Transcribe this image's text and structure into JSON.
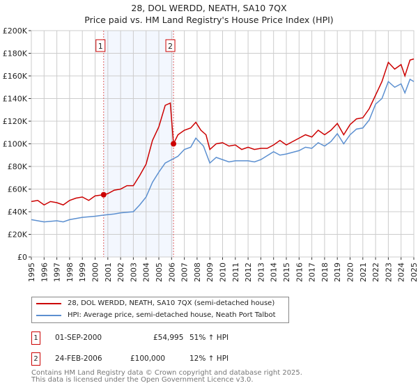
{
  "chart_data": {
    "type": "line",
    "title": "28, DOL WERDD, NEATH, SA10 7QX",
    "subtitle": "Price paid vs. HM Land Registry's House Price Index (HPI)",
    "ylim": [
      0,
      200000
    ],
    "xlim": [
      1995,
      2025
    ],
    "yticks": [
      "£0",
      "£20K",
      "£40K",
      "£60K",
      "£80K",
      "£100K",
      "£120K",
      "£140K",
      "£160K",
      "£180K",
      "£200K"
    ],
    "xticks": [
      "1995",
      "1996",
      "1997",
      "1998",
      "1999",
      "2000",
      "2001",
      "2002",
      "2003",
      "2004",
      "2005",
      "2006",
      "2007",
      "2008",
      "2009",
      "2010",
      "2011",
      "2012",
      "2013",
      "2014",
      "2015",
      "2016",
      "2017",
      "2018",
      "2019",
      "2020",
      "2021",
      "2022",
      "2023",
      "2024",
      "2025"
    ],
    "grid": true,
    "shaded_range": [
      2000.67,
      2006.15
    ],
    "series": [
      {
        "name": "28, DOL WERDD, NEATH, SA10 7QX (semi-detached house)",
        "color": "#cc0000",
        "x": [
          1995,
          1995.5,
          1996,
          1996.5,
          1997,
          1997.5,
          1998,
          1998.5,
          1999,
          1999.5,
          2000,
          2000.67,
          2001,
          2001.5,
          2002,
          2002.5,
          2003,
          2003.5,
          2004,
          2004.5,
          2005,
          2005.5,
          2005.9,
          2006.15,
          2006.5,
          2007,
          2007.5,
          2007.9,
          2008.3,
          2008.7,
          2009,
          2009.5,
          2010,
          2010.5,
          2011,
          2011.5,
          2012,
          2012.5,
          2013,
          2013.5,
          2014,
          2014.5,
          2015,
          2015.5,
          2016,
          2016.5,
          2017,
          2017.5,
          2018,
          2018.5,
          2019,
          2019.5,
          2020,
          2020.5,
          2021,
          2021.5,
          2022,
          2022.5,
          2023,
          2023.5,
          2024,
          2024.3,
          2024.7,
          2025
        ],
        "y": [
          49000,
          50000,
          46000,
          49000,
          48000,
          46000,
          50000,
          52000,
          53000,
          50000,
          54000,
          54995,
          56000,
          59000,
          60000,
          63000,
          63000,
          72000,
          82000,
          103000,
          115000,
          134000,
          136000,
          100000,
          108000,
          112000,
          114000,
          119000,
          112000,
          108000,
          95000,
          100000,
          101000,
          98000,
          99000,
          95000,
          97000,
          95000,
          96000,
          96000,
          99000,
          103000,
          99000,
          102000,
          105000,
          108000,
          106000,
          112000,
          108000,
          112000,
          118000,
          108000,
          117000,
          122000,
          123000,
          131000,
          143000,
          155000,
          172000,
          166000,
          170000,
          160000,
          174000,
          175000
        ]
      },
      {
        "name": "HPI: Average price, semi-detached house, Neath Port Talbot",
        "color": "#5b8fd0",
        "x": [
          1995,
          1996,
          1997,
          1997.5,
          1998,
          1999,
          2000,
          2000.67,
          2001.5,
          2002,
          2003,
          2003.5,
          2004,
          2004.5,
          2005,
          2005.5,
          2006,
          2006.5,
          2007,
          2007.5,
          2007.9,
          2008.5,
          2009,
          2009.5,
          2010,
          2010.5,
          2011,
          2012,
          2012.5,
          2013,
          2014,
          2014.5,
          2015,
          2016,
          2016.5,
          2017,
          2017.5,
          2018,
          2018.5,
          2019,
          2019.5,
          2020,
          2020.5,
          2021,
          2021.5,
          2022,
          2022.5,
          2023,
          2023.5,
          2024,
          2024.3,
          2024.7,
          2025
        ],
        "y": [
          33000,
          31000,
          32000,
          31000,
          33000,
          35000,
          36000,
          37000,
          38000,
          39000,
          40000,
          46000,
          53000,
          66000,
          75000,
          83000,
          86000,
          89000,
          95000,
          97000,
          105000,
          98000,
          83000,
          88000,
          86000,
          84000,
          85000,
          85000,
          84000,
          86000,
          93000,
          90000,
          91000,
          94000,
          97000,
          96000,
          101000,
          98000,
          102000,
          109000,
          100000,
          108000,
          113000,
          114000,
          121000,
          135000,
          140000,
          155000,
          150000,
          153000,
          145000,
          157000,
          155000
        ]
      }
    ],
    "sales": [
      {
        "label": "1",
        "x": 2000.67,
        "y": 54995,
        "date": "01-SEP-2000",
        "price": "£54,995",
        "hpi": "51% ↑ HPI"
      },
      {
        "label": "2",
        "x": 2006.15,
        "y": 100000,
        "date": "24-FEB-2006",
        "price": "£100,000",
        "hpi": "12% ↑ HPI"
      }
    ]
  },
  "footer": [
    "Contains HM Land Registry data © Crown copyright and database right 2025.",
    "This data is licensed under the Open Government Licence v3.0."
  ]
}
